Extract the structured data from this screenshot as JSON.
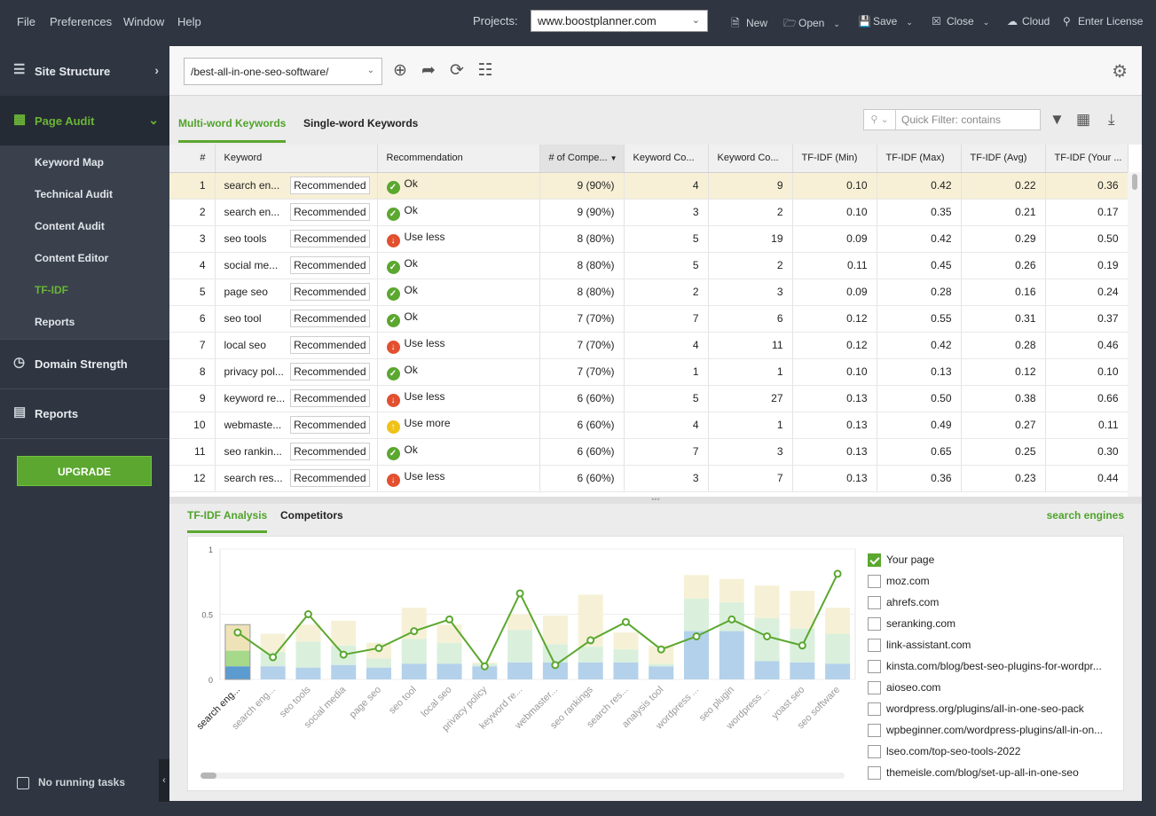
{
  "menu": [
    "File",
    "Preferences",
    "Window",
    "Help"
  ],
  "projects": {
    "label": "Projects:",
    "selected": "www.boostplanner.com"
  },
  "toolbar": {
    "new": "New",
    "open": "Open",
    "save": "Save",
    "close": "Close",
    "cloud": "Cloud",
    "license": "Enter License"
  },
  "sidebar": {
    "site_structure": "Site Structure",
    "page_audit": "Page Audit",
    "sub_items": [
      "Keyword Map",
      "Technical Audit",
      "Content Audit",
      "Content Editor",
      "TF-IDF",
      "Reports"
    ],
    "active_sub": "TF-IDF",
    "domain_strength": "Domain Strength",
    "reports": "Reports",
    "upgrade": "UPGRADE",
    "no_tasks": "No running tasks"
  },
  "url_bar": {
    "selected": "/best-all-in-one-seo-software/"
  },
  "kw_tabs": [
    "Multi-word Keywords",
    "Single-word Keywords"
  ],
  "quick_filter": {
    "placeholder": "Quick Filter: contains",
    "value": ""
  },
  "table": {
    "columns": [
      "#",
      "Keyword",
      "Recommendation",
      "# of Compe...",
      "Keyword Co...",
      "Keyword Co...",
      "TF-IDF (Min)",
      "TF-IDF (Max)",
      "TF-IDF (Avg)",
      "TF-IDF (Your ..."
    ],
    "rows": [
      {
        "n": "1",
        "kw": "search en...",
        "rec": "Recommended",
        "status": "ok",
        "status_label": "Ok",
        "comp": "9 (90%)",
        "kc1": "4",
        "kc2": "9",
        "min": "0.10",
        "max": "0.42",
        "avg": "0.22",
        "your": "0.36"
      },
      {
        "n": "2",
        "kw": "search en...",
        "rec": "Recommended",
        "status": "ok",
        "status_label": "Ok",
        "comp": "9 (90%)",
        "kc1": "3",
        "kc2": "2",
        "min": "0.10",
        "max": "0.35",
        "avg": "0.21",
        "your": "0.17"
      },
      {
        "n": "3",
        "kw": "seo tools",
        "rec": "Recommended",
        "status": "less",
        "status_label": "Use less",
        "comp": "8 (80%)",
        "kc1": "5",
        "kc2": "19",
        "min": "0.09",
        "max": "0.42",
        "avg": "0.29",
        "your": "0.50"
      },
      {
        "n": "4",
        "kw": "social me...",
        "rec": "Recommended",
        "status": "ok",
        "status_label": "Ok",
        "comp": "8 (80%)",
        "kc1": "5",
        "kc2": "2",
        "min": "0.11",
        "max": "0.45",
        "avg": "0.26",
        "your": "0.19"
      },
      {
        "n": "5",
        "kw": "page seo",
        "rec": "Recommended",
        "status": "ok",
        "status_label": "Ok",
        "comp": "8 (80%)",
        "kc1": "2",
        "kc2": "3",
        "min": "0.09",
        "max": "0.28",
        "avg": "0.16",
        "your": "0.24"
      },
      {
        "n": "6",
        "kw": "seo tool",
        "rec": "Recommended",
        "status": "ok",
        "status_label": "Ok",
        "comp": "7 (70%)",
        "kc1": "7",
        "kc2": "6",
        "min": "0.12",
        "max": "0.55",
        "avg": "0.31",
        "your": "0.37"
      },
      {
        "n": "7",
        "kw": "local seo",
        "rec": "Recommended",
        "status": "less",
        "status_label": "Use less",
        "comp": "7 (70%)",
        "kc1": "4",
        "kc2": "11",
        "min": "0.12",
        "max": "0.42",
        "avg": "0.28",
        "your": "0.46"
      },
      {
        "n": "8",
        "kw": "privacy pol...",
        "rec": "Recommended",
        "status": "ok",
        "status_label": "Ok",
        "comp": "7 (70%)",
        "kc1": "1",
        "kc2": "1",
        "min": "0.10",
        "max": "0.13",
        "avg": "0.12",
        "your": "0.10"
      },
      {
        "n": "9",
        "kw": "keyword re...",
        "rec": "Recommended",
        "status": "less",
        "status_label": "Use less",
        "comp": "6 (60%)",
        "kc1": "5",
        "kc2": "27",
        "min": "0.13",
        "max": "0.50",
        "avg": "0.38",
        "your": "0.66"
      },
      {
        "n": "10",
        "kw": "webmaste...",
        "rec": "Recommended",
        "status": "more",
        "status_label": "Use more",
        "comp": "6 (60%)",
        "kc1": "4",
        "kc2": "1",
        "min": "0.13",
        "max": "0.49",
        "avg": "0.27",
        "your": "0.11"
      },
      {
        "n": "11",
        "kw": "seo rankin...",
        "rec": "Recommended",
        "status": "ok",
        "status_label": "Ok",
        "comp": "6 (60%)",
        "kc1": "7",
        "kc2": "3",
        "min": "0.13",
        "max": "0.65",
        "avg": "0.25",
        "your": "0.30"
      },
      {
        "n": "12",
        "kw": "search res...",
        "rec": "Recommended",
        "status": "less",
        "status_label": "Use less",
        "comp": "6 (60%)",
        "kc1": "3",
        "kc2": "7",
        "min": "0.13",
        "max": "0.36",
        "avg": "0.23",
        "your": "0.44"
      }
    ]
  },
  "bottom_tabs": [
    "TF-IDF Analysis",
    "Competitors"
  ],
  "selected_keyword": "search engines",
  "legend": [
    {
      "label": "Your page",
      "checked": true
    },
    {
      "label": "moz.com",
      "checked": false
    },
    {
      "label": "ahrefs.com",
      "checked": false
    },
    {
      "label": "seranking.com",
      "checked": false
    },
    {
      "label": "link-assistant.com",
      "checked": false
    },
    {
      "label": "kinsta.com/blog/best-seo-plugins-for-wordpr...",
      "checked": false
    },
    {
      "label": "aioseo.com",
      "checked": false
    },
    {
      "label": "wordpress.org/plugins/all-in-one-seo-pack",
      "checked": false
    },
    {
      "label": "wpbeginner.com/wordpress-plugins/all-in-on...",
      "checked": false
    },
    {
      "label": "lseo.com/top-seo-tools-2022",
      "checked": false
    },
    {
      "label": "themeisle.com/blog/set-up-all-in-one-seo",
      "checked": false
    }
  ],
  "colors": {
    "accent": "#5ba72f",
    "bar_max": "#f6f1d6",
    "bar_avg": "#daf0dc",
    "bar_min": "#b3d1ea",
    "line": "#5ba72f"
  },
  "chart_data": {
    "type": "bar",
    "categories": [
      "search eng...",
      "search eng...",
      "seo tools",
      "social media",
      "page seo",
      "seo tool",
      "local seo",
      "privacy policy",
      "keyword re...",
      "webmaster...",
      "seo rankings",
      "search res...",
      "analysis tool",
      "wordpress ...",
      "seo plugin",
      "wordpress ...",
      "yoast seo",
      "seo software"
    ],
    "series": [
      {
        "values_key": "max",
        "values": [
          0.42,
          0.35,
          0.42,
          0.45,
          0.28,
          0.55,
          0.42,
          0.13,
          0.5,
          0.49,
          0.65,
          0.36,
          0.26,
          0.8,
          0.77,
          0.72,
          0.68,
          0.55
        ]
      },
      {
        "values_key": "avg",
        "values": [
          0.22,
          0.21,
          0.29,
          0.26,
          0.16,
          0.31,
          0.28,
          0.12,
          0.38,
          0.27,
          0.25,
          0.23,
          0.12,
          0.62,
          0.59,
          0.47,
          0.39,
          0.35
        ]
      },
      {
        "values_key": "min",
        "values": [
          0.1,
          0.1,
          0.09,
          0.11,
          0.09,
          0.12,
          0.12,
          0.1,
          0.13,
          0.13,
          0.13,
          0.13,
          0.1,
          0.37,
          0.37,
          0.14,
          0.13,
          0.12
        ]
      },
      {
        "values_key": "your",
        "values": [
          0.36,
          0.17,
          0.5,
          0.19,
          0.24,
          0.37,
          0.46,
          0.1,
          0.66,
          0.11,
          0.3,
          0.44,
          0.23,
          0.33,
          0.46,
          0.33,
          0.26,
          0.81
        ]
      }
    ],
    "yticks": [
      "0",
      "0.5",
      "1"
    ],
    "ylim": [
      0,
      1
    ],
    "grid": true
  }
}
